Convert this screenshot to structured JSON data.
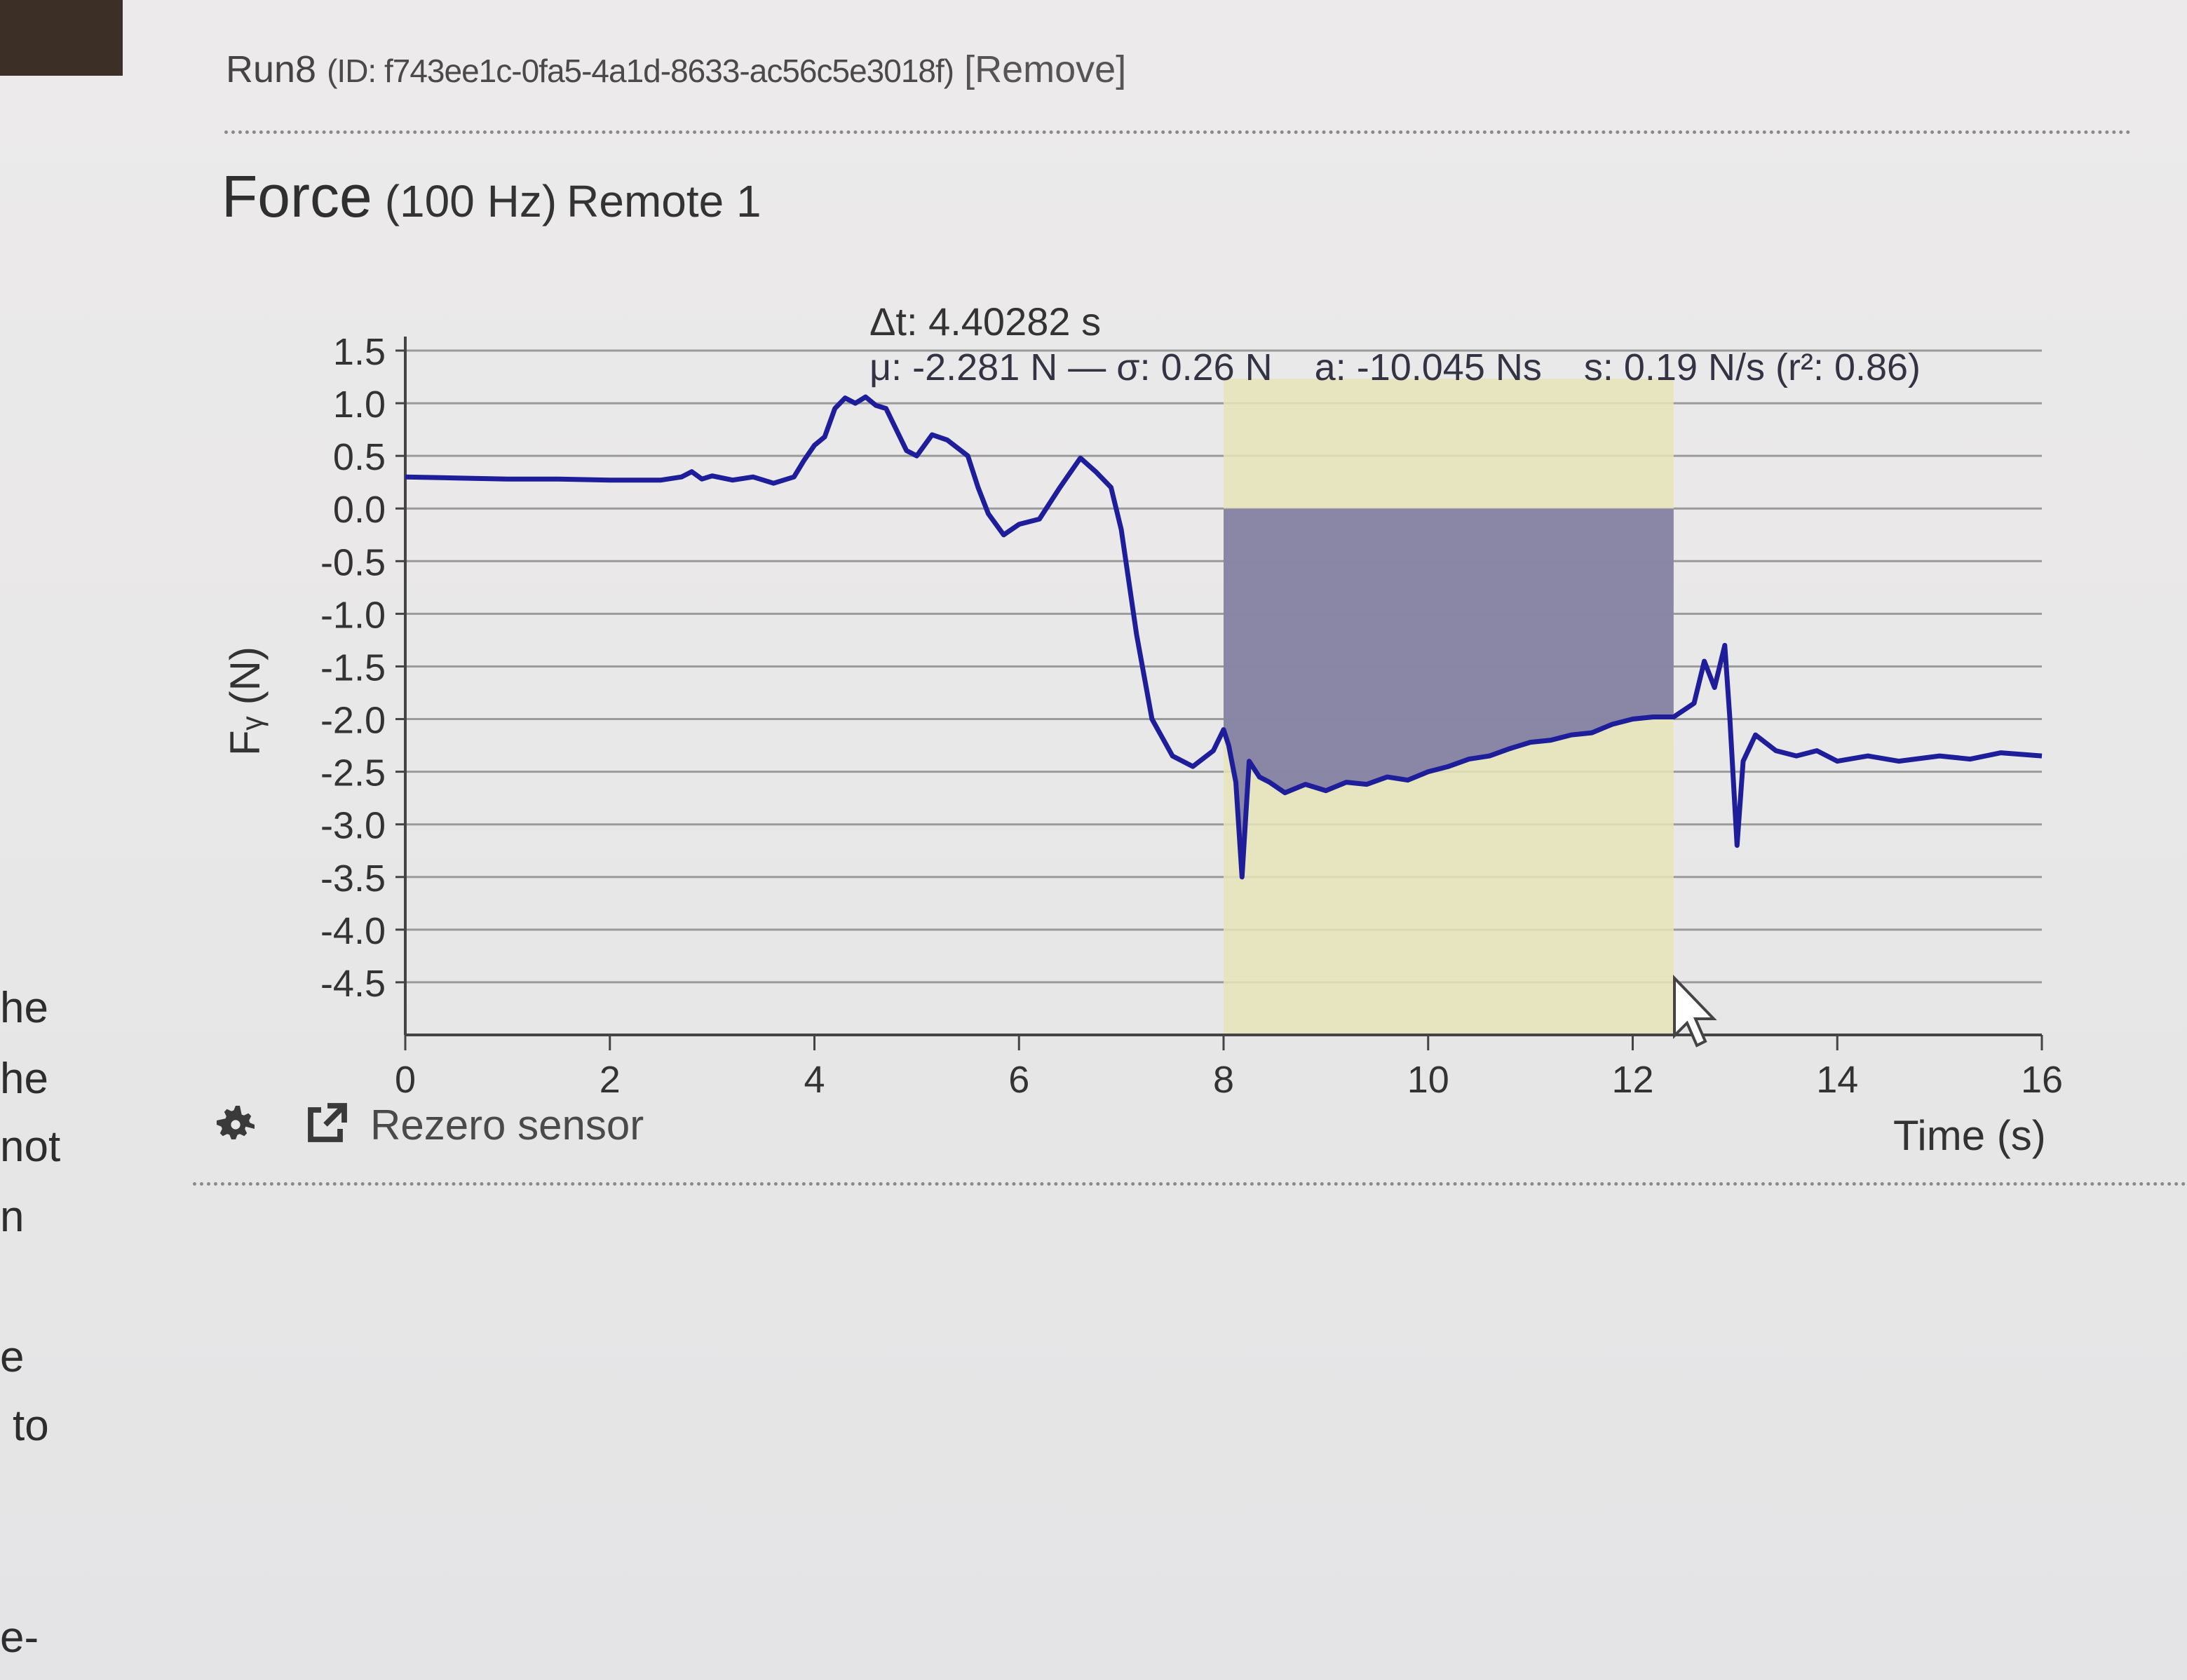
{
  "left_edge_text": [
    "he",
    "he",
    "not",
    "n",
    "e",
    "to",
    "e-"
  ],
  "run": {
    "name": "Run8",
    "id_text": "(ID: f743ee1c-0fa5-4a1d-8633-ac56c5e3018f)",
    "remove_label": "[Remove]"
  },
  "panel": {
    "title": "Force",
    "rate": "(100 Hz)",
    "source": "Remote 1"
  },
  "stats": {
    "delta_t": "Δt: 4.40282 s",
    "line2": "μ: -2.281 N — σ: 0.26 N    a: -10.045 Ns    s: 0.19 N/s (r²: 0.86)"
  },
  "footer": {
    "rezero_label": "Rezero sensor",
    "settings_icon": "gear-icon",
    "popout_icon": "external-link-icon"
  },
  "colors": {
    "line": "#1e1e9a",
    "selection": "#e6e4b8",
    "area": "#7f7ba3"
  },
  "chart_data": {
    "type": "line",
    "xlabel": "Time (s)",
    "ylabel": "Fᵧ (N)",
    "xlim": [
      0,
      16
    ],
    "ylim": [
      -5.0,
      1.5
    ],
    "xticks": [
      "0",
      "2",
      "4",
      "6",
      "8",
      "10",
      "12",
      "14",
      "16"
    ],
    "yticks": [
      "1.5",
      "1.0",
      "0.5",
      "0.0",
      "-0.5",
      "-1.0",
      "-1.5",
      "-2.0",
      "-2.5",
      "-3.0",
      "-3.5",
      "-4.0",
      "-4.5"
    ],
    "selection": {
      "x_start": 8.0,
      "x_end": 12.4
    },
    "series": [
      {
        "values": [
          [
            0.0,
            0.3
          ],
          [
            0.5,
            0.29
          ],
          [
            1.0,
            0.28
          ],
          [
            1.5,
            0.28
          ],
          [
            2.0,
            0.27
          ],
          [
            2.5,
            0.27
          ],
          [
            2.7,
            0.3
          ],
          [
            2.8,
            0.35
          ],
          [
            2.9,
            0.28
          ],
          [
            3.0,
            0.31
          ],
          [
            3.2,
            0.27
          ],
          [
            3.4,
            0.3
          ],
          [
            3.6,
            0.24
          ],
          [
            3.8,
            0.3
          ],
          [
            3.9,
            0.46
          ],
          [
            4.0,
            0.6
          ],
          [
            4.1,
            0.68
          ],
          [
            4.2,
            0.95
          ],
          [
            4.3,
            1.05
          ],
          [
            4.4,
            1.0
          ],
          [
            4.5,
            1.06
          ],
          [
            4.6,
            0.98
          ],
          [
            4.7,
            0.95
          ],
          [
            4.8,
            0.75
          ],
          [
            4.9,
            0.55
          ],
          [
            5.0,
            0.5
          ],
          [
            5.15,
            0.7
          ],
          [
            5.3,
            0.65
          ],
          [
            5.5,
            0.5
          ],
          [
            5.6,
            0.2
          ],
          [
            5.7,
            -0.05
          ],
          [
            5.85,
            -0.25
          ],
          [
            6.0,
            -0.15
          ],
          [
            6.2,
            -0.1
          ],
          [
            6.4,
            0.2
          ],
          [
            6.6,
            0.48
          ],
          [
            6.75,
            0.35
          ],
          [
            6.9,
            0.2
          ],
          [
            7.0,
            -0.2
          ],
          [
            7.15,
            -1.2
          ],
          [
            7.3,
            -2.0
          ],
          [
            7.5,
            -2.35
          ],
          [
            7.7,
            -2.45
          ],
          [
            7.9,
            -2.3
          ],
          [
            8.0,
            -2.1
          ],
          [
            8.05,
            -2.25
          ],
          [
            8.12,
            -2.6
          ],
          [
            8.18,
            -3.5
          ],
          [
            8.25,
            -2.4
          ],
          [
            8.35,
            -2.55
          ],
          [
            8.45,
            -2.6
          ],
          [
            8.6,
            -2.7
          ],
          [
            8.8,
            -2.62
          ],
          [
            9.0,
            -2.68
          ],
          [
            9.2,
            -2.6
          ],
          [
            9.4,
            -2.62
          ],
          [
            9.6,
            -2.55
          ],
          [
            9.8,
            -2.58
          ],
          [
            10.0,
            -2.5
          ],
          [
            10.2,
            -2.45
          ],
          [
            10.4,
            -2.38
          ],
          [
            10.6,
            -2.35
          ],
          [
            10.8,
            -2.28
          ],
          [
            11.0,
            -2.22
          ],
          [
            11.2,
            -2.2
          ],
          [
            11.4,
            -2.15
          ],
          [
            11.6,
            -2.13
          ],
          [
            11.8,
            -2.05
          ],
          [
            12.0,
            -2.0
          ],
          [
            12.2,
            -1.98
          ],
          [
            12.4,
            -1.98
          ],
          [
            12.6,
            -1.85
          ],
          [
            12.7,
            -1.45
          ],
          [
            12.8,
            -1.7
          ],
          [
            12.9,
            -1.3
          ],
          [
            12.95,
            -2.0
          ],
          [
            13.02,
            -3.2
          ],
          [
            13.08,
            -2.4
          ],
          [
            13.2,
            -2.15
          ],
          [
            13.4,
            -2.3
          ],
          [
            13.6,
            -2.35
          ],
          [
            13.8,
            -2.3
          ],
          [
            14.0,
            -2.4
          ],
          [
            14.3,
            -2.35
          ],
          [
            14.6,
            -2.4
          ],
          [
            15.0,
            -2.35
          ],
          [
            15.3,
            -2.38
          ],
          [
            15.6,
            -2.32
          ],
          [
            16.0,
            -2.35
          ]
        ]
      }
    ]
  }
}
